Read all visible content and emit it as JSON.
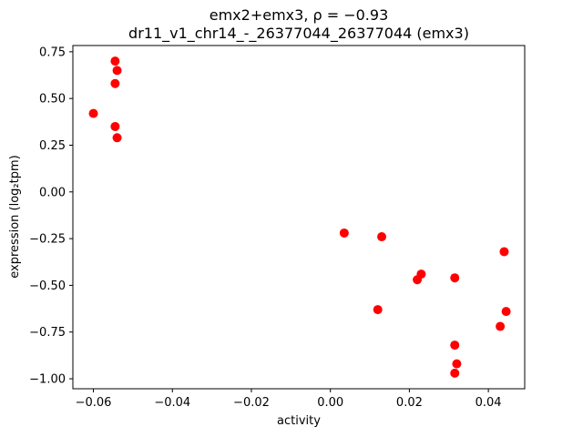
{
  "window": {
    "title": "emx2+emx3 scatter figure",
    "background": "#ffffff"
  },
  "chart_data": {
    "type": "scatter",
    "title": "emx2+emx3, ρ = −0.93",
    "subtitle": "dr11_v1_chr14_-_26377044_26377044 (emx3)",
    "xlabel": "activity",
    "ylabel": "expression (log₂tpm)",
    "legend": "none",
    "grid": false,
    "marker": "circle",
    "marker_color": "#ff0000",
    "marker_radius_px": 5,
    "axis_color": "#000000",
    "xlim": [
      -0.0652,
      0.0492
    ],
    "ylim": [
      -1.0535,
      0.7835
    ],
    "xticks": [
      -0.06,
      -0.04,
      -0.02,
      0.0,
      0.02,
      0.04
    ],
    "yticks": [
      0.75,
      0.5,
      0.25,
      0.0,
      -0.25,
      -0.5,
      -0.75,
      -1.0
    ],
    "points": [
      {
        "x": -0.06,
        "y": 0.42
      },
      {
        "x": -0.0545,
        "y": 0.7
      },
      {
        "x": -0.054,
        "y": 0.65
      },
      {
        "x": -0.0545,
        "y": 0.58
      },
      {
        "x": -0.0545,
        "y": 0.35
      },
      {
        "x": -0.054,
        "y": 0.29
      },
      {
        "x": 0.0035,
        "y": -0.22
      },
      {
        "x": 0.013,
        "y": -0.24
      },
      {
        "x": 0.012,
        "y": -0.63
      },
      {
        "x": 0.022,
        "y": -0.47
      },
      {
        "x": 0.023,
        "y": -0.44
      },
      {
        "x": 0.0315,
        "y": -0.46
      },
      {
        "x": 0.0315,
        "y": -0.82
      },
      {
        "x": 0.032,
        "y": -0.92
      },
      {
        "x": 0.0315,
        "y": -0.97
      },
      {
        "x": 0.044,
        "y": -0.32
      },
      {
        "x": 0.0445,
        "y": -0.64
      },
      {
        "x": 0.043,
        "y": -0.72
      }
    ]
  }
}
